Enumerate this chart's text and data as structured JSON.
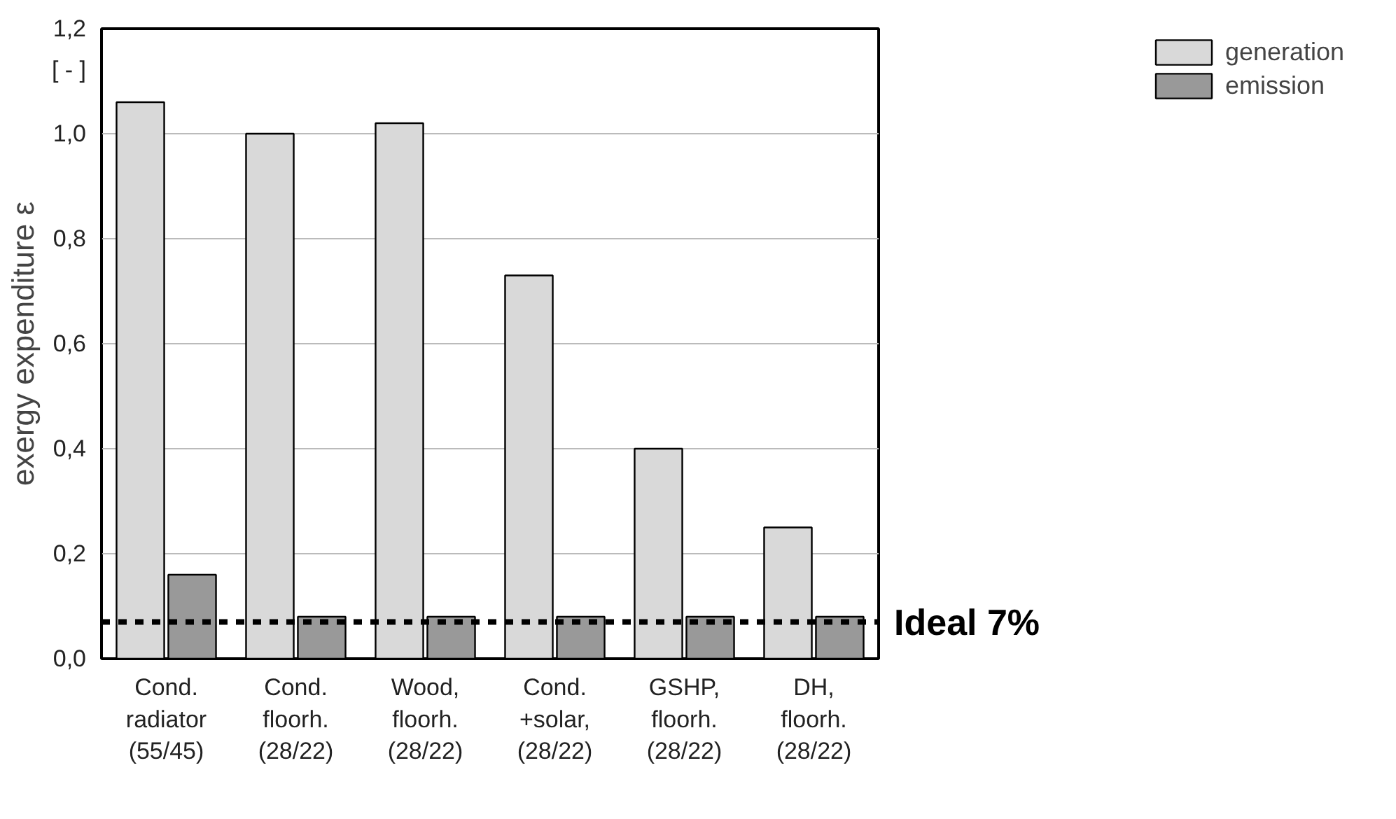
{
  "chart_data": {
    "type": "bar",
    "ylabel": "exergy expenditure ε",
    "categories": [
      "Cond.\nradiator\n(55/45)",
      "Cond.\nfloorh.\n(28/22)",
      "Wood,\nfloorh.\n(28/22)",
      "Cond.\n+solar,\n(28/22)",
      "GSHP,\nfloorh.\n(28/22)",
      "DH,\nfloorh.\n(28/22)"
    ],
    "series": [
      {
        "name": "generation",
        "color": "#d9d9d9",
        "values": [
          1.06,
          1.0,
          1.02,
          0.73,
          0.4,
          0.25
        ]
      },
      {
        "name": "emission",
        "color": "#999999",
        "values": [
          0.16,
          0.08,
          0.08,
          0.08,
          0.08,
          0.08
        ]
      }
    ],
    "ylim": [
      0,
      1.2
    ],
    "yticks": [
      {
        "value": 0,
        "label": "0,0"
      },
      {
        "value": 0.2,
        "label": "0,2"
      },
      {
        "value": 0.4,
        "label": "0,4"
      },
      {
        "value": 0.6,
        "label": "0,6"
      },
      {
        "value": 0.8,
        "label": "0,8"
      },
      {
        "value": 1.0,
        "label": "1,0"
      },
      {
        "value": 1.2,
        "label": "1,2"
      }
    ],
    "ref_lines": [
      {
        "axis": "y",
        "value": 0.07,
        "label": "Ideal 7%",
        "color": "#000000",
        "line_style": "dashed"
      }
    ],
    "annotations": [
      "[ - ]"
    ],
    "grid": "y",
    "legend": "top right"
  }
}
